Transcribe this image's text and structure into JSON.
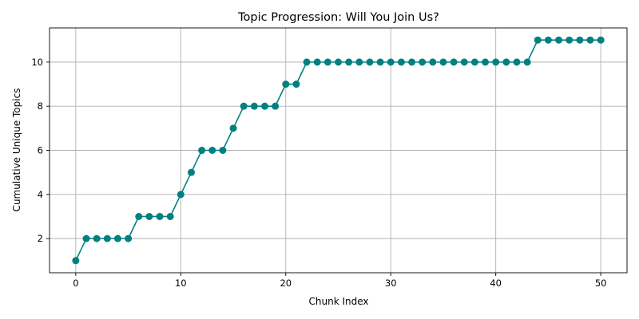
{
  "chart_data": {
    "type": "line",
    "title": "Topic Progression: Will You Join Us?",
    "xlabel": "Chunk Index",
    "ylabel": "Cumulative Unique Topics",
    "xlim": [
      -2.5,
      52.5
    ],
    "ylim": [
      0.45,
      11.55
    ],
    "xticks": [
      0,
      10,
      20,
      30,
      40,
      50
    ],
    "yticks": [
      2,
      4,
      6,
      8,
      10
    ],
    "grid": true,
    "color": "#008080",
    "marker": "circle",
    "x": [
      0,
      1,
      2,
      3,
      4,
      5,
      6,
      7,
      8,
      9,
      10,
      11,
      12,
      13,
      14,
      15,
      16,
      17,
      18,
      19,
      20,
      21,
      22,
      23,
      24,
      25,
      26,
      27,
      28,
      29,
      30,
      31,
      32,
      33,
      34,
      35,
      36,
      37,
      38,
      39,
      40,
      41,
      42,
      43,
      44,
      45,
      46,
      47,
      48,
      49,
      50
    ],
    "y": [
      1,
      2,
      2,
      2,
      2,
      2,
      3,
      3,
      3,
      3,
      4,
      5,
      6,
      6,
      6,
      7,
      8,
      8,
      8,
      8,
      9,
      9,
      10,
      10,
      10,
      10,
      10,
      10,
      10,
      10,
      10,
      10,
      10,
      10,
      10,
      10,
      10,
      10,
      10,
      10,
      10,
      10,
      10,
      10,
      11,
      11,
      11,
      11,
      11,
      11,
      11
    ]
  }
}
